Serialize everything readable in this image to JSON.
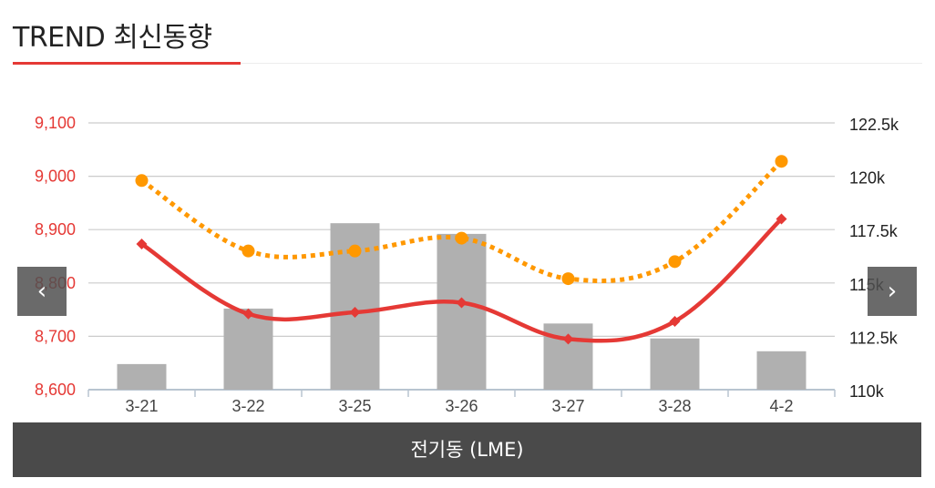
{
  "header": {
    "title": "TREND 최신동향"
  },
  "footer": {
    "label": "전기동 (LME)"
  },
  "nav": {
    "prev_icon": "chevron-left-icon",
    "next_icon": "chevron-right-icon"
  },
  "colors": {
    "accent": "#e53935",
    "bar": "#b0b0b0",
    "dotted": "#ff9800",
    "left_axis_text": "#e53935",
    "right_axis_text": "#222222",
    "grid": "#cccccc"
  },
  "chart_data": {
    "type": "bar",
    "categories": [
      "3-21",
      "3-22",
      "3-25",
      "3-26",
      "3-27",
      "3-28",
      "4-2"
    ],
    "left_axis": {
      "min": 8600,
      "max": 9100,
      "ticks": [
        "8,600",
        "8,700",
        "8,800",
        "8,900",
        "9,000",
        "9,100"
      ]
    },
    "right_axis": {
      "min": 110000,
      "max": 122500,
      "ticks": [
        "110k",
        "112.5k",
        "115k",
        "117.5k",
        "120k",
        "122.5k"
      ]
    },
    "series": [
      {
        "type": "bar",
        "axis": "right",
        "values": [
          111200,
          113800,
          117800,
          117300,
          113100,
          112400,
          111800
        ]
      },
      {
        "type": "line",
        "axis": "left",
        "style": "solid",
        "marker": "diamond",
        "values": [
          8873,
          8742,
          8745,
          8763,
          8695,
          8728,
          8920
        ]
      },
      {
        "type": "line",
        "axis": "right",
        "style": "dotted",
        "marker": "circle",
        "values": [
          119800,
          116500,
          116500,
          117100,
          115200,
          116000,
          120700
        ]
      }
    ],
    "grid": true
  }
}
